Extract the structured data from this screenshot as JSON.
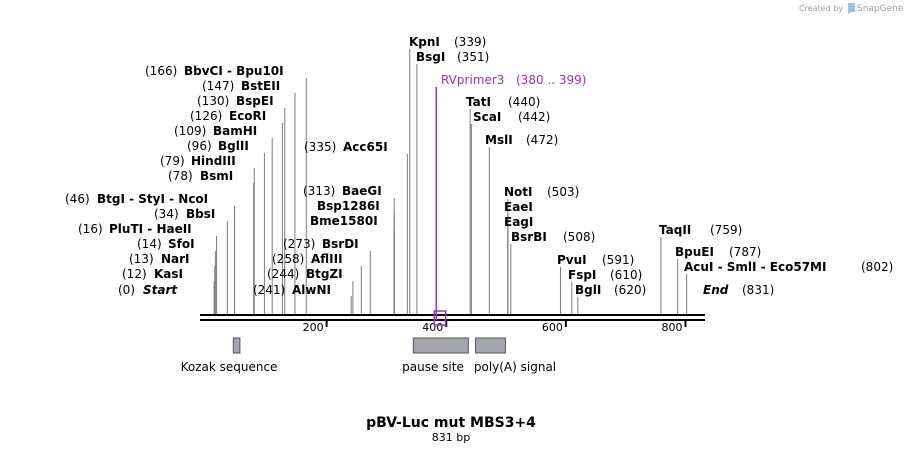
{
  "credit": {
    "created_by": "Created by",
    "brand": "SnapGene"
  },
  "map": {
    "title": "pBV-Luc mut MBS3+4",
    "length_label": "831 bp",
    "length_bp": 831,
    "ticks": [
      "200",
      "400",
      "600",
      "800"
    ],
    "tick_values": [
      200,
      400,
      600,
      800
    ],
    "sites": [
      {
        "name": "Start",
        "pos": "(0)",
        "bp": 0,
        "kind": "end"
      },
      {
        "name": "KasI",
        "pos": "(12)",
        "bp": 12
      },
      {
        "name": "NarI",
        "pos": "(13)",
        "bp": 13
      },
      {
        "name": "SfoI",
        "pos": "(14)",
        "bp": 14
      },
      {
        "name": "PluTI  - HaeII",
        "pos": "(16)",
        "bp": 16
      },
      {
        "name": "BbsI",
        "pos": "(34)",
        "bp": 34
      },
      {
        "name": "BtgI  - StyI  - NcoI",
        "pos": "(46)",
        "bp": 46
      },
      {
        "name": "BsmI",
        "pos": "(78)",
        "bp": 78
      },
      {
        "name": "HindIII",
        "pos": "(79)",
        "bp": 79
      },
      {
        "name": "BglII",
        "pos": "(96)",
        "bp": 96
      },
      {
        "name": "BamHI",
        "pos": "(109)",
        "bp": 109
      },
      {
        "name": "EcoRI",
        "pos": "(126)",
        "bp": 126
      },
      {
        "name": "BspEI",
        "pos": "(130)",
        "bp": 130
      },
      {
        "name": "BstEII",
        "pos": "(147)",
        "bp": 147
      },
      {
        "name": "BbvCI  - Bpu10I",
        "pos": "(166)",
        "bp": 166
      },
      {
        "name": "AlwNI",
        "pos": "(241)",
        "bp": 241
      },
      {
        "name": "BtgZI",
        "pos": "(244)",
        "bp": 244
      },
      {
        "name": "AflIII",
        "pos": "(258)",
        "bp": 258
      },
      {
        "name": "BsrDI",
        "pos": "(273)",
        "bp": 273
      },
      {
        "name": "Bme1580I",
        "pos": "",
        "bp": 313
      },
      {
        "name": "Bsp1286I",
        "pos": "",
        "bp": 313
      },
      {
        "name": "BaeGI",
        "pos": "(313)",
        "bp": 313
      },
      {
        "name": "Acc65I",
        "pos": "(335)",
        "bp": 335
      },
      {
        "name": "KpnI",
        "pos": "(339)",
        "bp": 339
      },
      {
        "name": "BsgI",
        "pos": "(351)",
        "bp": 351
      },
      {
        "name": "TatI",
        "pos": "(440)",
        "bp": 440
      },
      {
        "name": "ScaI",
        "pos": "(442)",
        "bp": 442
      },
      {
        "name": "MslI",
        "pos": "(472)",
        "bp": 472
      },
      {
        "name": "NotI",
        "pos": "(503)",
        "bp": 503
      },
      {
        "name": "EaeI",
        "pos": "",
        "bp": 503
      },
      {
        "name": "EagI",
        "pos": "",
        "bp": 503
      },
      {
        "name": "BsrBI",
        "pos": "(508)",
        "bp": 508
      },
      {
        "name": "PvuI",
        "pos": "(591)",
        "bp": 591
      },
      {
        "name": "FspI",
        "pos": "(610)",
        "bp": 610
      },
      {
        "name": "BglI",
        "pos": "(620)",
        "bp": 620
      },
      {
        "name": "TaqII",
        "pos": "(759)",
        "bp": 759
      },
      {
        "name": "BpuEI",
        "pos": "(787)",
        "bp": 787
      },
      {
        "name": "AcuI  - SmlI  - Eco57MI",
        "pos": "(802)",
        "bp": 802
      },
      {
        "name": "End",
        "pos": "(831)",
        "bp": 831,
        "kind": "end"
      }
    ],
    "primer": {
      "name": "RVprimer3",
      "range": "(380 .. 399)",
      "start": 380,
      "end": 399,
      "color": "#9b30c8"
    },
    "features": [
      {
        "name": "Kozak sequence",
        "start": 44,
        "end": 55
      },
      {
        "name": "pause site",
        "start": 345,
        "end": 437
      },
      {
        "name": "poly(A) signal",
        "start": 449,
        "end": 499
      }
    ],
    "colors": {
      "feature_fill": "#a2a6ae",
      "feature_stroke": "#53565c",
      "backbone": "#000000",
      "tick_line": "#8a8a8a"
    }
  }
}
